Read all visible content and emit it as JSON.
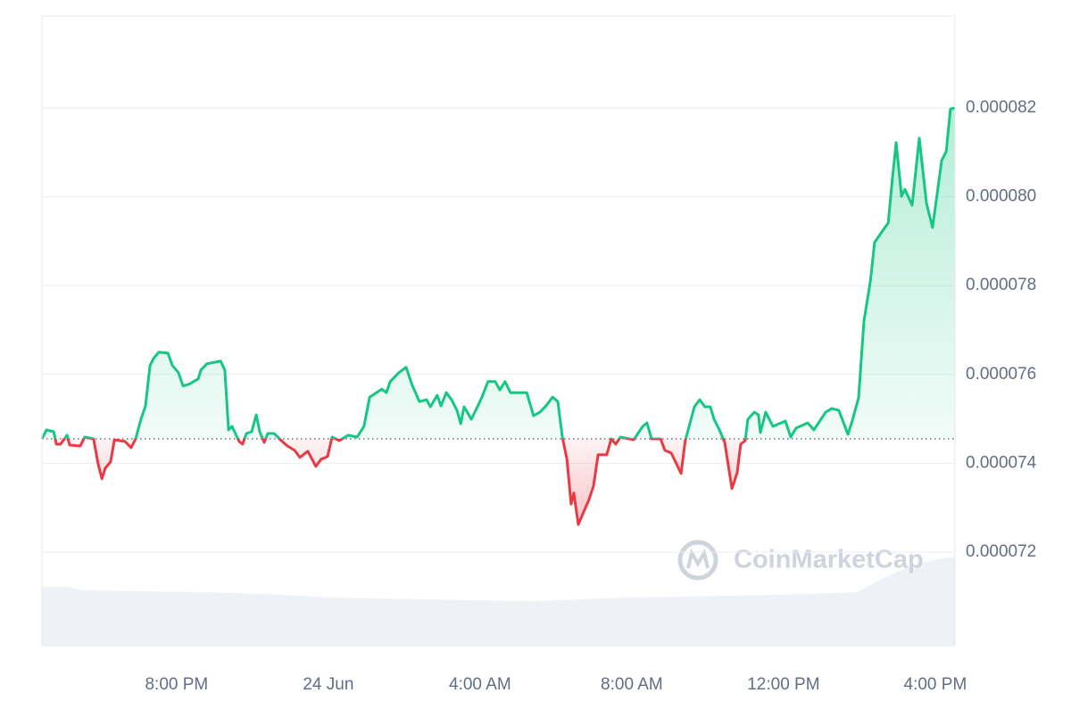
{
  "chart_data": {
    "type": "line",
    "watermark": "CoinMarketCap",
    "color": "#16c784",
    "down_color": "#ea3943",
    "xlim": [
      0,
      24.07
    ],
    "xticks": [
      {
        "value": 3.55,
        "label": "8:00 PM"
      },
      {
        "value": 7.55,
        "label": "24 Jun"
      },
      {
        "value": 11.55,
        "label": "4:00 AM"
      },
      {
        "value": 15.55,
        "label": "8:00 AM"
      },
      {
        "value": 19.55,
        "label": "12:00 PM"
      },
      {
        "value": 23.55,
        "label": "4:00 PM"
      }
    ],
    "ylim": [
      6.989e-05,
      8.407e-05
    ],
    "yticks": [
      7.2e-05,
      7.4e-05,
      7.6e-05,
      7.8e-05,
      {
        "value": 8e-05,
        "label": "0.000080"
      },
      8.2e-05
    ],
    "grid": true,
    "x": [
      0.0,
      0.12,
      0.31,
      0.38,
      0.49,
      0.66,
      0.73,
      1.01,
      1.13,
      1.36,
      1.48,
      1.58,
      1.67,
      1.81,
      1.91,
      2.19,
      2.35,
      2.47,
      2.61,
      2.73,
      2.85,
      2.94,
      3.08,
      3.32,
      3.44,
      3.6,
      3.72,
      3.88,
      4.12,
      4.19,
      4.35,
      4.71,
      4.82,
      4.92,
      5.01,
      5.2,
      5.29,
      5.39,
      5.53,
      5.65,
      5.74,
      5.86,
      5.95,
      6.12,
      6.31,
      6.47,
      6.66,
      6.8,
      7.01,
      7.22,
      7.36,
      7.53,
      7.65,
      7.84,
      8.07,
      8.31,
      8.49,
      8.64,
      8.96,
      9.08,
      9.18,
      9.41,
      9.6,
      9.76,
      9.95,
      10.14,
      10.24,
      10.42,
      10.52,
      10.66,
      10.8,
      10.94,
      11.04,
      11.13,
      11.32,
      11.48,
      11.6,
      11.76,
      11.95,
      12.07,
      12.21,
      12.35,
      12.78,
      12.96,
      13.13,
      13.29,
      13.46,
      13.6,
      13.72,
      13.84,
      13.95,
      14.02,
      14.14,
      14.24,
      14.42,
      14.54,
      14.66,
      14.89,
      15.01,
      15.13,
      15.25,
      15.6,
      15.84,
      15.95,
      16.07,
      16.31,
      16.42,
      16.59,
      16.85,
      16.96,
      17.2,
      17.34,
      17.48,
      17.62,
      17.72,
      17.86,
      18.0,
      18.19,
      18.33,
      18.42,
      18.54,
      18.61,
      18.78,
      18.89,
      18.94,
      19.08,
      19.27,
      19.6,
      19.74,
      19.88,
      20.19,
      20.35,
      20.66,
      20.82,
      21.01,
      21.25,
      21.36,
      21.53,
      21.67,
      21.84,
      21.95,
      22.14,
      22.31,
      22.42,
      22.52,
      22.66,
      22.75,
      22.94,
      23.13,
      23.32,
      23.48,
      23.72,
      23.84,
      23.95,
      24.07
    ],
    "values": [
      7.455e-05,
      7.475e-05,
      7.471e-05,
      7.443e-05,
      7.443e-05,
      7.463e-05,
      7.441e-05,
      7.439e-05,
      7.459e-05,
      7.455e-05,
      7.399e-05,
      7.365e-05,
      7.389e-05,
      7.403e-05,
      7.453e-05,
      7.449e-05,
      7.435e-05,
      7.455e-05,
      7.499e-05,
      7.529e-05,
      7.62e-05,
      7.636e-05,
      7.65e-05,
      7.648e-05,
      7.62e-05,
      7.604e-05,
      7.574e-05,
      7.578e-05,
      7.59e-05,
      7.61e-05,
      7.624e-05,
      7.63e-05,
      7.61e-05,
      7.475e-05,
      7.483e-05,
      7.449e-05,
      7.443e-05,
      7.467e-05,
      7.471e-05,
      7.509e-05,
      7.471e-05,
      7.447e-05,
      7.467e-05,
      7.467e-05,
      7.451e-05,
      7.439e-05,
      7.429e-05,
      7.413e-05,
      7.427e-05,
      7.393e-05,
      7.409e-05,
      7.415e-05,
      7.459e-05,
      7.451e-05,
      7.463e-05,
      7.459e-05,
      7.483e-05,
      7.549e-05,
      7.567e-05,
      7.559e-05,
      7.584e-05,
      7.604e-05,
      7.616e-05,
      7.576e-05,
      7.539e-05,
      7.543e-05,
      7.527e-05,
      7.553e-05,
      7.529e-05,
      7.559e-05,
      7.543e-05,
      7.519e-05,
      7.489e-05,
      7.527e-05,
      7.499e-05,
      7.527e-05,
      7.549e-05,
      7.584e-05,
      7.584e-05,
      7.565e-05,
      7.584e-05,
      7.559e-05,
      7.559e-05,
      7.507e-05,
      7.515e-05,
      7.529e-05,
      7.549e-05,
      7.539e-05,
      7.459e-05,
      7.409e-05,
      7.308e-05,
      7.333e-05,
      7.262e-05,
      7.282e-05,
      7.318e-05,
      7.349e-05,
      7.419e-05,
      7.419e-05,
      7.455e-05,
      7.443e-05,
      7.459e-05,
      7.453e-05,
      7.483e-05,
      7.491e-05,
      7.455e-05,
      7.455e-05,
      7.429e-05,
      7.423e-05,
      7.377e-05,
      7.451e-05,
      7.527e-05,
      7.543e-05,
      7.527e-05,
      7.527e-05,
      7.499e-05,
      7.475e-05,
      7.447e-05,
      7.343e-05,
      7.379e-05,
      7.443e-05,
      7.451e-05,
      7.499e-05,
      7.515e-05,
      7.509e-05,
      7.469e-05,
      7.515e-05,
      7.483e-05,
      7.495e-05,
      7.459e-05,
      7.479e-05,
      7.491e-05,
      7.475e-05,
      7.515e-05,
      7.523e-05,
      7.519e-05,
      7.465e-05,
      7.495e-05,
      7.547e-05,
      7.72e-05,
      7.81e-05,
      7.897e-05,
      7.921e-05,
      7.941e-05,
      8.041e-05,
      8.122e-05,
      8.001e-05,
      8.017e-05,
      7.981e-05,
      8.132e-05,
      7.985e-05,
      7.931e-05,
      8.082e-05,
      8.102e-05,
      8.198e-05,
      8.2e-05
    ]
  }
}
